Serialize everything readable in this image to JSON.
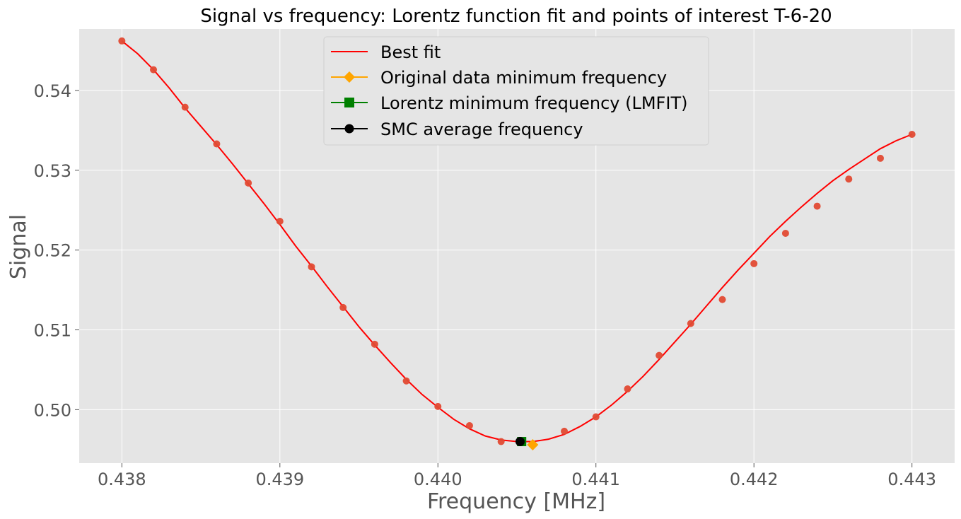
{
  "chart_data": {
    "type": "scatter",
    "title": "Signal vs frequency: Lorentz function fit and points of interest T-6-20",
    "xlabel": "Frequency [MHz]",
    "ylabel": "Signal",
    "xlim": [
      0.43773,
      0.44327
    ],
    "ylim": [
      0.4933,
      0.5477
    ],
    "xticks": [
      0.438,
      0.439,
      0.44,
      0.441,
      0.442,
      0.443
    ],
    "xtick_labels": [
      "0.438",
      "0.439",
      "0.440",
      "0.441",
      "0.442",
      "0.443"
    ],
    "yticks": [
      0.5,
      0.51,
      0.52,
      0.53,
      0.54
    ],
    "ytick_labels": [
      "0.50",
      "0.51",
      "0.52",
      "0.53",
      "0.54"
    ],
    "grid": true,
    "legend_position": "top-center",
    "colors": {
      "background": "#e5e5e5",
      "grid": "#ffffff",
      "data_points": "#e24a33",
      "fit": "#ff0000",
      "orig_min": "#ffa500",
      "lorentz_min": "#008000",
      "smc": "#000000"
    },
    "data_points": {
      "x": [
        0.438,
        0.4382,
        0.4384,
        0.4386,
        0.4388,
        0.439,
        0.4392,
        0.4394,
        0.4396,
        0.4398,
        0.44,
        0.4402,
        0.4404,
        0.4406,
        0.4408,
        0.441,
        0.4412,
        0.4414,
        0.4416,
        0.4418,
        0.442,
        0.4422,
        0.4424,
        0.4426,
        0.4428,
        0.443
      ],
      "y": [
        0.5462,
        0.5426,
        0.5379,
        0.5333,
        0.5284,
        0.5236,
        0.5179,
        0.5128,
        0.5082,
        0.5036,
        0.5004,
        0.498,
        0.496,
        0.4957,
        0.4973,
        0.4991,
        0.5026,
        0.5068,
        0.5108,
        0.5138,
        0.5183,
        0.5221,
        0.5255,
        0.5289,
        0.5315,
        0.5345
      ]
    },
    "fit_curve": {
      "x": [
        0.438,
        0.4381,
        0.4382,
        0.4383,
        0.4384,
        0.4385,
        0.4386,
        0.4387,
        0.4388,
        0.4389,
        0.439,
        0.4391,
        0.4392,
        0.4393,
        0.4394,
        0.4395,
        0.4396,
        0.4397,
        0.4398,
        0.4399,
        0.44,
        0.4401,
        0.4402,
        0.4403,
        0.4404,
        0.4405,
        0.4406,
        0.4407,
        0.4408,
        0.4409,
        0.441,
        0.4411,
        0.4412,
        0.4413,
        0.4414,
        0.4415,
        0.4416,
        0.4417,
        0.4418,
        0.4419,
        0.442,
        0.4421,
        0.4422,
        0.4423,
        0.4424,
        0.4425,
        0.4426,
        0.4427,
        0.4428,
        0.4429,
        0.443
      ],
      "y": [
        0.5462,
        0.5446,
        0.5426,
        0.5403,
        0.5378,
        0.5355,
        0.5332,
        0.5308,
        0.5283,
        0.5258,
        0.5232,
        0.5205,
        0.518,
        0.5154,
        0.5129,
        0.5104,
        0.5081,
        0.5059,
        0.5038,
        0.5019,
        0.5003,
        0.4988,
        0.4976,
        0.4967,
        0.4962,
        0.496,
        0.496,
        0.4963,
        0.4969,
        0.4979,
        0.4991,
        0.5006,
        0.5023,
        0.5042,
        0.5063,
        0.5085,
        0.5107,
        0.513,
        0.5153,
        0.5175,
        0.5196,
        0.5217,
        0.5236,
        0.5254,
        0.5271,
        0.5287,
        0.5301,
        0.5314,
        0.5327,
        0.5337,
        0.5345
      ]
    },
    "series": [
      {
        "name": "Best fit",
        "kind": "line",
        "color": "#ff0000"
      },
      {
        "name": "Original data minimum frequency",
        "kind": "marker",
        "marker": "diamond",
        "color": "#ffa500",
        "x": 0.4406,
        "y": 0.4956
      },
      {
        "name": "Lorentz minimum frequency (LMFIT)",
        "kind": "marker",
        "marker": "square",
        "color": "#008000",
        "x": 0.44053,
        "y": 0.496
      },
      {
        "name": "SMC average frequency",
        "kind": "marker",
        "marker": "circle",
        "color": "#000000",
        "x": 0.44052,
        "y": 0.496
      }
    ]
  }
}
